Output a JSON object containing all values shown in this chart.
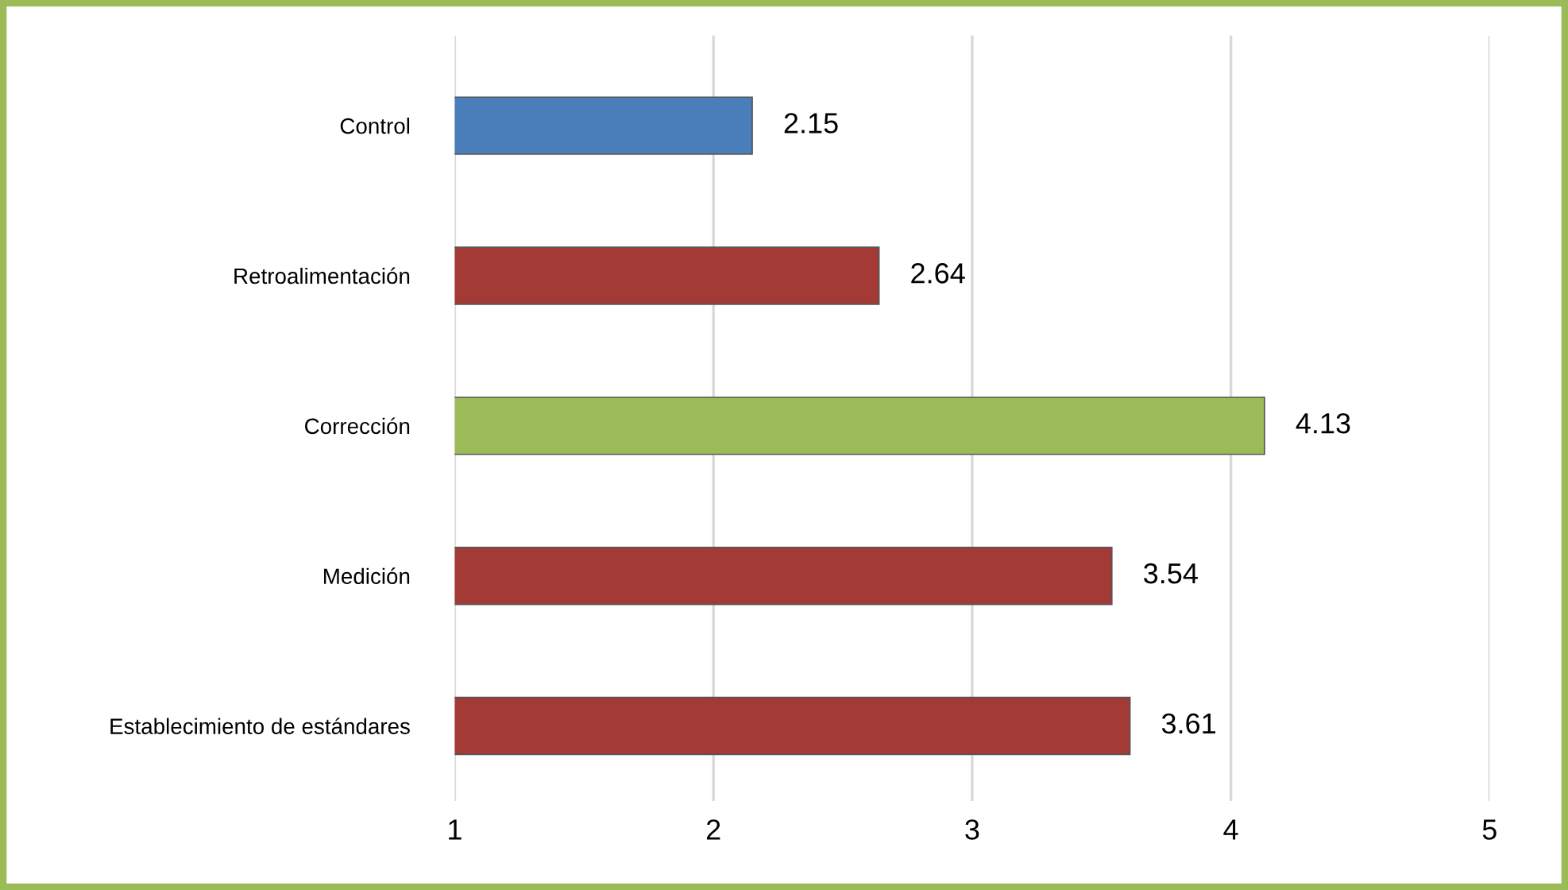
{
  "chart_data": {
    "type": "bar",
    "orientation": "horizontal",
    "categories": [
      "Control",
      "Retroalimentación",
      "Corrección",
      "Medición",
      "Establecimiento de estándares"
    ],
    "values": [
      2.15,
      2.64,
      4.13,
      3.54,
      3.61
    ],
    "colors": [
      "#4a7ebb",
      "#a33a36",
      "#9bbb59",
      "#a33a36",
      "#a33a36"
    ],
    "xlim": [
      1,
      5
    ],
    "xticks": [
      1,
      2,
      3,
      4,
      5
    ],
    "grid": "x",
    "data_labels": true
  }
}
